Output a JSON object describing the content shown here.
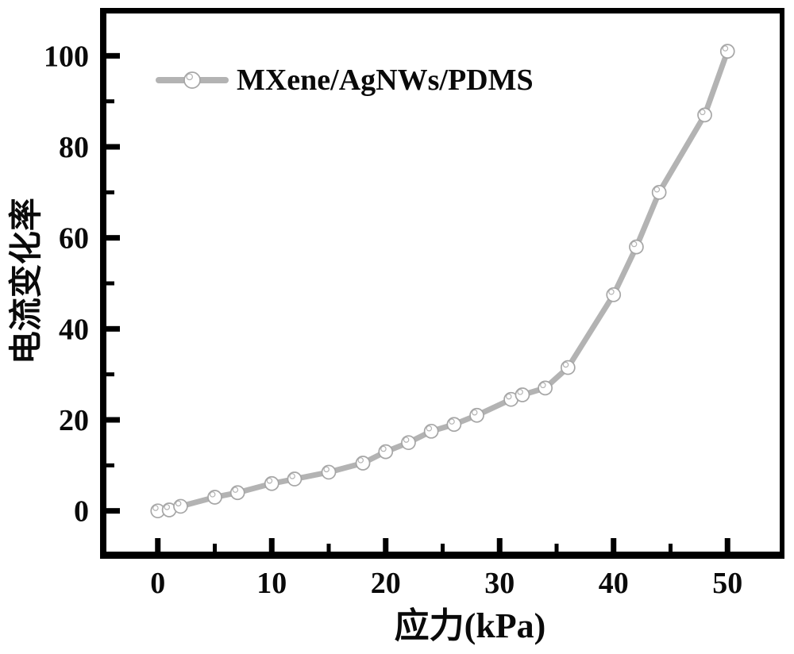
{
  "figure": {
    "background": "#ffffff",
    "frame_color": "#000000",
    "tick_label_color": "#0a0a0a"
  },
  "chart_data": {
    "type": "line",
    "title": "",
    "xlabel": "应力(kPa)",
    "ylabel": "电流变化率",
    "xlim": [
      -5,
      55
    ],
    "ylim": [
      -10,
      110
    ],
    "x_major_ticks": [
      0,
      10,
      20,
      30,
      40,
      50
    ],
    "x_minor_ticks": [
      5,
      15,
      25,
      35,
      45
    ],
    "y_major_ticks": [
      0,
      20,
      40,
      60,
      80,
      100
    ],
    "y_minor_ticks": [
      10,
      30,
      50,
      70,
      90
    ],
    "grid": false,
    "legend_position": "upper-left-inside",
    "series": [
      {
        "name": "MXene/AgNWs/PDMS",
        "line_color": "#b3b3b3",
        "line_width": 7,
        "marker": "ball-circle",
        "marker_fill": "#ffffff",
        "marker_stroke": "#a6a6a6",
        "x": [
          0,
          1,
          2,
          5,
          7,
          10,
          12,
          15,
          18,
          20,
          22,
          24,
          26,
          28,
          31,
          32,
          34,
          36,
          40,
          42,
          44,
          48,
          50
        ],
        "y": [
          0,
          0.2,
          1,
          3,
          4,
          6,
          7,
          8.5,
          10.5,
          13,
          15,
          17.5,
          19,
          21,
          24.5,
          25.5,
          27,
          31.5,
          47.5,
          58,
          70,
          87,
          101
        ]
      }
    ]
  }
}
